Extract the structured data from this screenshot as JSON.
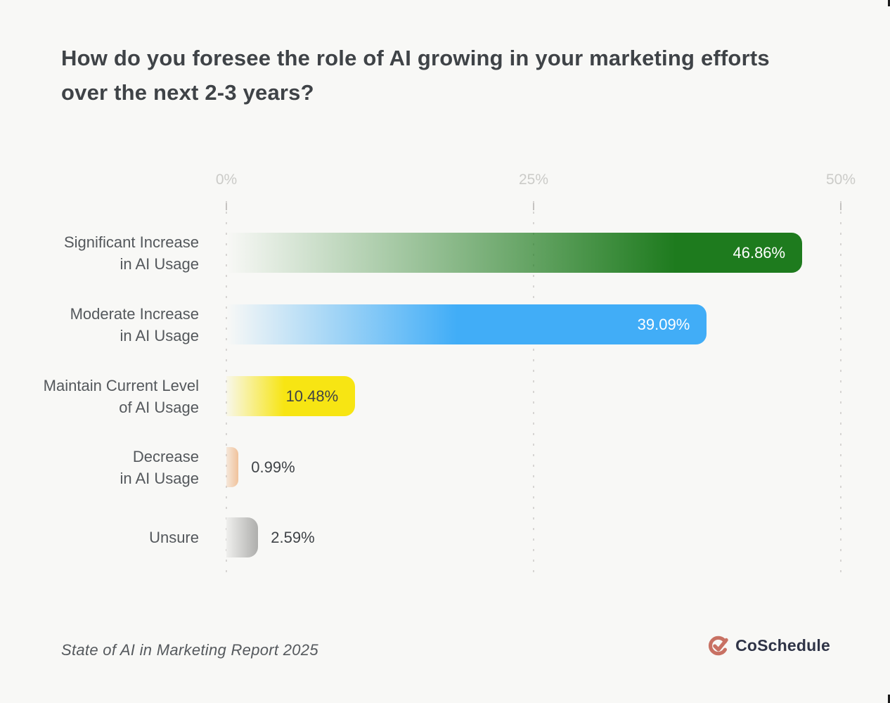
{
  "title_line1": "How do you foresee the role of AI growing in your marketing efforts",
  "title_line2": "over the next 2-3 years?",
  "axis": {
    "tick_labels": [
      "0%",
      "25%",
      "50%"
    ],
    "max": 50
  },
  "chart_data": {
    "type": "bar",
    "orientation": "horizontal",
    "title": "How do you foresee the role of AI growing in your marketing efforts over the next 2-3 years?",
    "categories": [
      "Significant Increase in AI Usage",
      "Moderate Increase in AI Usage",
      "Maintain Current Level of AI Usage",
      "Decrease in AI Usage",
      "Unsure"
    ],
    "values": [
      46.86,
      39.09,
      10.48,
      0.99,
      2.59
    ],
    "value_labels": [
      "46.86%",
      "39.09%",
      "10.48%",
      "0.99%",
      "2.59%"
    ],
    "xlim": [
      0,
      50
    ],
    "x_ticks": [
      "0%",
      "25%",
      "50%"
    ],
    "grid": "dotted-vertical",
    "legend": "none",
    "bar_colors": [
      "#1e7b1e",
      "#41adf7",
      "#f7e513",
      "#f0c29b",
      "#aeaeac"
    ]
  },
  "rows": [
    {
      "label_line1": "Significant Increase",
      "label_line2": "in AI Usage",
      "value": 46.86,
      "value_label": "46.86%",
      "color_from": "rgba(30,123,30,0)",
      "color_to": "#1e7b1e",
      "solid_stop": "78%",
      "value_color": "#ffffff"
    },
    {
      "label_line1": "Moderate Increase",
      "label_line2": "in AI Usage",
      "value": 39.09,
      "value_label": "39.09%",
      "color_from": "rgba(65,173,247,0)",
      "color_to": "#41adf7",
      "solid_stop": "48%",
      "value_color": "#ffffff"
    },
    {
      "label_line1": "Maintain Current Level",
      "label_line2": "of AI Usage",
      "value": 10.48,
      "value_label": "10.48%",
      "color_from": "rgba(247,229,19,0.05)",
      "color_to": "#f7e513",
      "solid_stop": "45%",
      "value_color": "#3f4347"
    },
    {
      "label_line1": "Decrease",
      "label_line2": "in AI Usage",
      "value": 0.99,
      "value_label": "0.99%",
      "color_from": "rgba(240,194,155,0.3)",
      "color_to": "#f0c29b",
      "solid_stop": "100%",
      "value_color": "#3f4347"
    },
    {
      "label_line1": "Unsure",
      "label_line2": "",
      "value": 2.59,
      "value_label": "2.59%",
      "color_from": "#efefed",
      "color_to": "#aeaeac",
      "solid_stop": "100%",
      "value_color": "#3f4347"
    }
  ],
  "footer": {
    "source": "State of AI in Marketing Report 2025",
    "brand_name": "CoSchedule"
  },
  "colors": {
    "background": "#f8f8f6",
    "title": "#3f4347",
    "axis_label": "#cbcbc8",
    "gridline": "#d7d5d3",
    "category_label": "#54585c",
    "brand_icon": "#c87163",
    "brand_text": "#2f3447"
  }
}
